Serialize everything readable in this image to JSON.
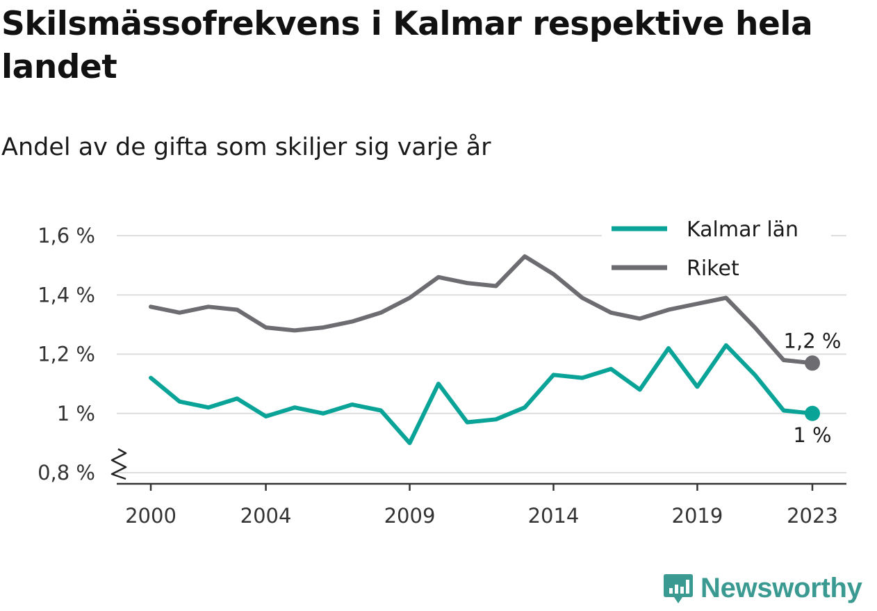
{
  "title": "Skilsmässofrekvens i Kalmar respektive hela landet",
  "subtitle": "Andel av de gifta som skiljer sig varje år",
  "brand": "Newsworthy",
  "colors": {
    "kalmar": "#0aa398",
    "riket": "#6d6c71",
    "grid": "#dddddd",
    "axis": "#333333",
    "brand": "#3a9a92"
  },
  "chart_data": {
    "type": "line",
    "x": [
      2000,
      2001,
      2002,
      2003,
      2004,
      2005,
      2006,
      2007,
      2008,
      2009,
      2010,
      2011,
      2012,
      2013,
      2014,
      2015,
      2016,
      2017,
      2018,
      2019,
      2020,
      2021,
      2022,
      2023
    ],
    "series": [
      {
        "name": "Kalmar län",
        "color": "#0aa398",
        "values": [
          1.12,
          1.04,
          1.02,
          1.05,
          0.99,
          1.02,
          1.0,
          1.03,
          1.01,
          0.9,
          1.1,
          0.97,
          0.98,
          1.02,
          1.13,
          1.12,
          1.15,
          1.08,
          1.22,
          1.09,
          1.23,
          1.13,
          1.01,
          1.0
        ],
        "end_label": "1 %"
      },
      {
        "name": "Riket",
        "color": "#6d6c71",
        "values": [
          1.36,
          1.34,
          1.36,
          1.35,
          1.29,
          1.28,
          1.29,
          1.31,
          1.34,
          1.39,
          1.46,
          1.44,
          1.43,
          1.53,
          1.47,
          1.39,
          1.34,
          1.32,
          1.35,
          1.37,
          1.39,
          1.29,
          1.18,
          1.17
        ],
        "end_label": "1,2 %"
      }
    ],
    "x_ticks": [
      {
        "value": 2000,
        "label": "2000"
      },
      {
        "value": 2004,
        "label": "2004"
      },
      {
        "value": 2009,
        "label": "2009"
      },
      {
        "value": 2014,
        "label": "2014"
      },
      {
        "value": 2019,
        "label": "2019"
      },
      {
        "value": 2023,
        "label": "2023"
      }
    ],
    "y_ticks": [
      {
        "value": 0.8,
        "label": "0,8 %"
      },
      {
        "value": 1.0,
        "label": "1 %"
      },
      {
        "value": 1.2,
        "label": "1,2 %"
      },
      {
        "value": 1.4,
        "label": "1,4 %"
      },
      {
        "value": 1.6,
        "label": "1,6 %"
      }
    ],
    "ylim": [
      0.8,
      1.6
    ],
    "xlim": [
      2000,
      2023
    ],
    "y_axis_break": true,
    "grid": true,
    "legend_position": "top-right"
  }
}
